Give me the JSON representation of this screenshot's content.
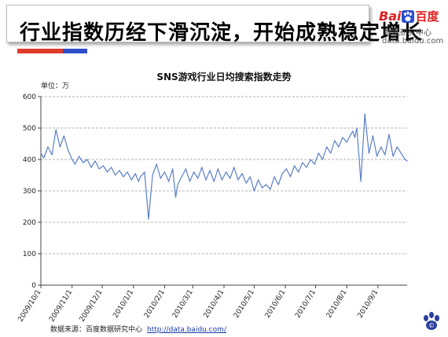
{
  "header": {
    "title": "行业指数历经下滑沉淀，开始成熟稳定增长"
  },
  "logo": {
    "brand_latin": "Bai",
    "brand_cn": "百度",
    "subtitle": "数据研究中心",
    "url": "data.baidu.com"
  },
  "footer": {
    "source_label": "数据来源：百度数据研究中心",
    "source_url": "http://data.baidu.com/"
  },
  "colors": {
    "header_red": "#e03a2a",
    "header_blue": "#2d4fc9",
    "series_line": "#5b7fc7",
    "grid": "#9a9a9a"
  },
  "chart_data": {
    "type": "line",
    "title": "SNS游戏行业日均搜索指数走势",
    "unit_label": "单位：万",
    "ylim": [
      0,
      600
    ],
    "yticks": [
      0,
      100,
      200,
      300,
      400,
      500,
      600
    ],
    "grid": "horizontal dashed",
    "legend": "none",
    "xlim": [
      "2009-10-01",
      "2010-09-30"
    ],
    "xticks": [
      "2009/10/1",
      "2009/11/1",
      "2009/12/1",
      "2010/1/1",
      "2010/2/1",
      "2010/3/1",
      "2010/4/1",
      "2010/5/1",
      "2010/6/1",
      "2010/7/1",
      "2010/8/1",
      "2010/9/1"
    ],
    "series": [
      {
        "x": [
          "2009-10-01",
          "2009-10-04",
          "2009-10-08",
          "2009-10-12",
          "2009-10-16",
          "2009-10-20",
          "2009-10-24",
          "2009-10-28",
          "2009-11-01",
          "2009-11-04",
          "2009-11-08",
          "2009-11-12",
          "2009-11-16",
          "2009-11-20",
          "2009-11-24",
          "2009-11-28",
          "2009-12-02",
          "2009-12-06",
          "2009-12-10",
          "2009-12-14",
          "2009-12-18",
          "2009-12-22",
          "2009-12-26",
          "2009-12-30",
          "2010-01-03",
          "2010-01-06",
          "2010-01-08",
          "2010-01-12",
          "2010-01-16",
          "2010-01-20",
          "2010-01-24",
          "2010-01-28",
          "2010-02-01",
          "2010-02-05",
          "2010-02-09",
          "2010-02-12",
          "2010-02-14",
          "2010-02-18",
          "2010-02-22",
          "2010-02-26",
          "2010-03-02",
          "2010-03-06",
          "2010-03-10",
          "2010-03-14",
          "2010-03-18",
          "2010-03-22",
          "2010-03-26",
          "2010-03-30",
          "2010-04-03",
          "2010-04-07",
          "2010-04-11",
          "2010-04-15",
          "2010-04-19",
          "2010-04-23",
          "2010-04-27",
          "2010-05-01",
          "2010-05-05",
          "2010-05-09",
          "2010-05-13",
          "2010-05-17",
          "2010-05-21",
          "2010-05-25",
          "2010-05-29",
          "2010-06-02",
          "2010-06-06",
          "2010-06-10",
          "2010-06-14",
          "2010-06-18",
          "2010-06-22",
          "2010-06-26",
          "2010-06-30",
          "2010-07-04",
          "2010-07-08",
          "2010-07-12",
          "2010-07-16",
          "2010-07-20",
          "2010-07-24",
          "2010-07-28",
          "2010-08-01",
          "2010-08-05",
          "2010-08-07",
          "2010-08-09",
          "2010-08-11",
          "2010-08-15",
          "2010-08-19",
          "2010-08-23",
          "2010-08-27",
          "2010-08-31",
          "2010-09-04",
          "2010-09-08",
          "2010-09-12",
          "2010-09-16",
          "2010-09-20",
          "2010-09-24",
          "2010-09-28",
          "2010-09-30"
        ],
        "values": [
          420,
          405,
          440,
          415,
          495,
          440,
          475,
          430,
          400,
          385,
          410,
          390,
          400,
          375,
          395,
          370,
          380,
          360,
          375,
          350,
          365,
          345,
          360,
          335,
          355,
          330,
          345,
          360,
          210,
          350,
          385,
          340,
          360,
          330,
          370,
          280,
          320,
          345,
          370,
          330,
          360,
          340,
          375,
          335,
          365,
          330,
          370,
          335,
          360,
          340,
          375,
          335,
          355,
          325,
          345,
          300,
          335,
          310,
          320,
          305,
          345,
          320,
          355,
          370,
          345,
          380,
          360,
          390,
          375,
          400,
          385,
          420,
          400,
          440,
          420,
          460,
          440,
          470,
          455,
          480,
          490,
          470,
          500,
          330,
          545,
          420,
          475,
          410,
          440,
          415,
          480,
          410,
          440,
          420,
          400,
          395
        ]
      }
    ]
  }
}
